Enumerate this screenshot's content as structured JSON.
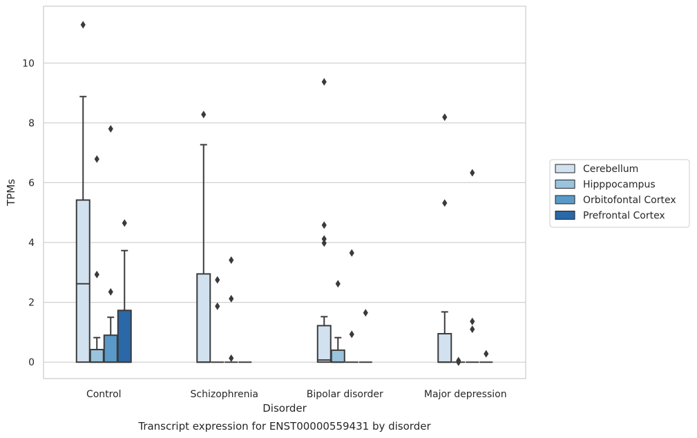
{
  "chart_data": {
    "type": "box",
    "title": "Transcript expression for ENST00000559431 by disorder",
    "xlabel": "Disorder",
    "ylabel": "TPMs",
    "ylim": [
      -0.55,
      11.9
    ],
    "yticks": [
      0,
      2,
      4,
      6,
      8,
      10
    ],
    "grid": "horizontal",
    "legend_position": "right",
    "categories": [
      "Control",
      "Schizophrenia",
      "Bipolar disorder",
      "Major depression"
    ],
    "series": [
      {
        "name": "Cerebellum",
        "color": "#d2e1f0",
        "boxes": [
          {
            "q1": 0,
            "median": 2.62,
            "q3": 5.42,
            "whisker_low": 0,
            "whisker_high": 8.88,
            "outliers": [
              11.28
            ]
          },
          {
            "q1": 0,
            "median": 0,
            "q3": 2.95,
            "whisker_low": 0,
            "whisker_high": 7.27,
            "outliers": [
              8.28
            ]
          },
          {
            "q1": 0,
            "median": 0.07,
            "q3": 1.22,
            "whisker_low": 0,
            "whisker_high": 1.52,
            "outliers": [
              4.58,
              4.12,
              3.98,
              9.37
            ]
          },
          {
            "q1": 0,
            "median": 0,
            "q3": 0.95,
            "whisker_low": 0,
            "whisker_high": 1.68,
            "outliers": [
              8.19,
              5.32
            ]
          }
        ]
      },
      {
        "name": "Hipppocampus",
        "color": "#9ac3dd",
        "boxes": [
          {
            "q1": 0,
            "median": 0,
            "q3": 0.42,
            "whisker_low": 0,
            "whisker_high": 0.82,
            "outliers": [
              6.79,
              2.93
            ]
          },
          {
            "q1": 0,
            "median": 0,
            "q3": 0,
            "whisker_low": 0,
            "whisker_high": 0,
            "outliers": [
              2.75,
              1.87
            ]
          },
          {
            "q1": 0,
            "median": 0,
            "q3": 0.4,
            "whisker_low": 0,
            "whisker_high": 0.82,
            "outliers": [
              2.62
            ]
          },
          {
            "q1": 0,
            "median": 0,
            "q3": 0,
            "whisker_low": 0,
            "whisker_high": 0,
            "outliers": [
              0.05,
              0
            ]
          }
        ]
      },
      {
        "name": "Orbitofontal Cortex",
        "color": "#5a9ac8",
        "boxes": [
          {
            "q1": 0,
            "median": 0,
            "q3": 0.9,
            "whisker_low": 0,
            "whisker_high": 1.5,
            "outliers": [
              7.8,
              2.35
            ]
          },
          {
            "q1": 0,
            "median": 0,
            "q3": 0,
            "whisker_low": 0,
            "whisker_high": 0,
            "outliers": [
              3.41,
              2.12,
              0.13
            ]
          },
          {
            "q1": 0,
            "median": 0,
            "q3": 0,
            "whisker_low": 0,
            "whisker_high": 0,
            "outliers": [
              3.65,
              0.93
            ]
          },
          {
            "q1": 0,
            "median": 0,
            "q3": 0,
            "whisker_low": 0,
            "whisker_high": 0,
            "outliers": [
              6.33,
              1.36,
              1.1
            ]
          }
        ]
      },
      {
        "name": "Prefrontal Cortex",
        "color": "#2a68a7",
        "boxes": [
          {
            "q1": 0,
            "median": 0,
            "q3": 1.73,
            "whisker_low": 0,
            "whisker_high": 3.73,
            "outliers": [
              4.65
            ]
          },
          {
            "q1": 0,
            "median": 0,
            "q3": 0,
            "whisker_low": 0,
            "whisker_high": 0,
            "outliers": []
          },
          {
            "q1": 0,
            "median": 0,
            "q3": 0,
            "whisker_low": 0,
            "whisker_high": 0,
            "outliers": [
              1.65
            ]
          },
          {
            "q1": 0,
            "median": 0,
            "q3": 0,
            "whisker_low": 0,
            "whisker_high": 0,
            "outliers": [
              0.28
            ]
          }
        ]
      }
    ]
  }
}
